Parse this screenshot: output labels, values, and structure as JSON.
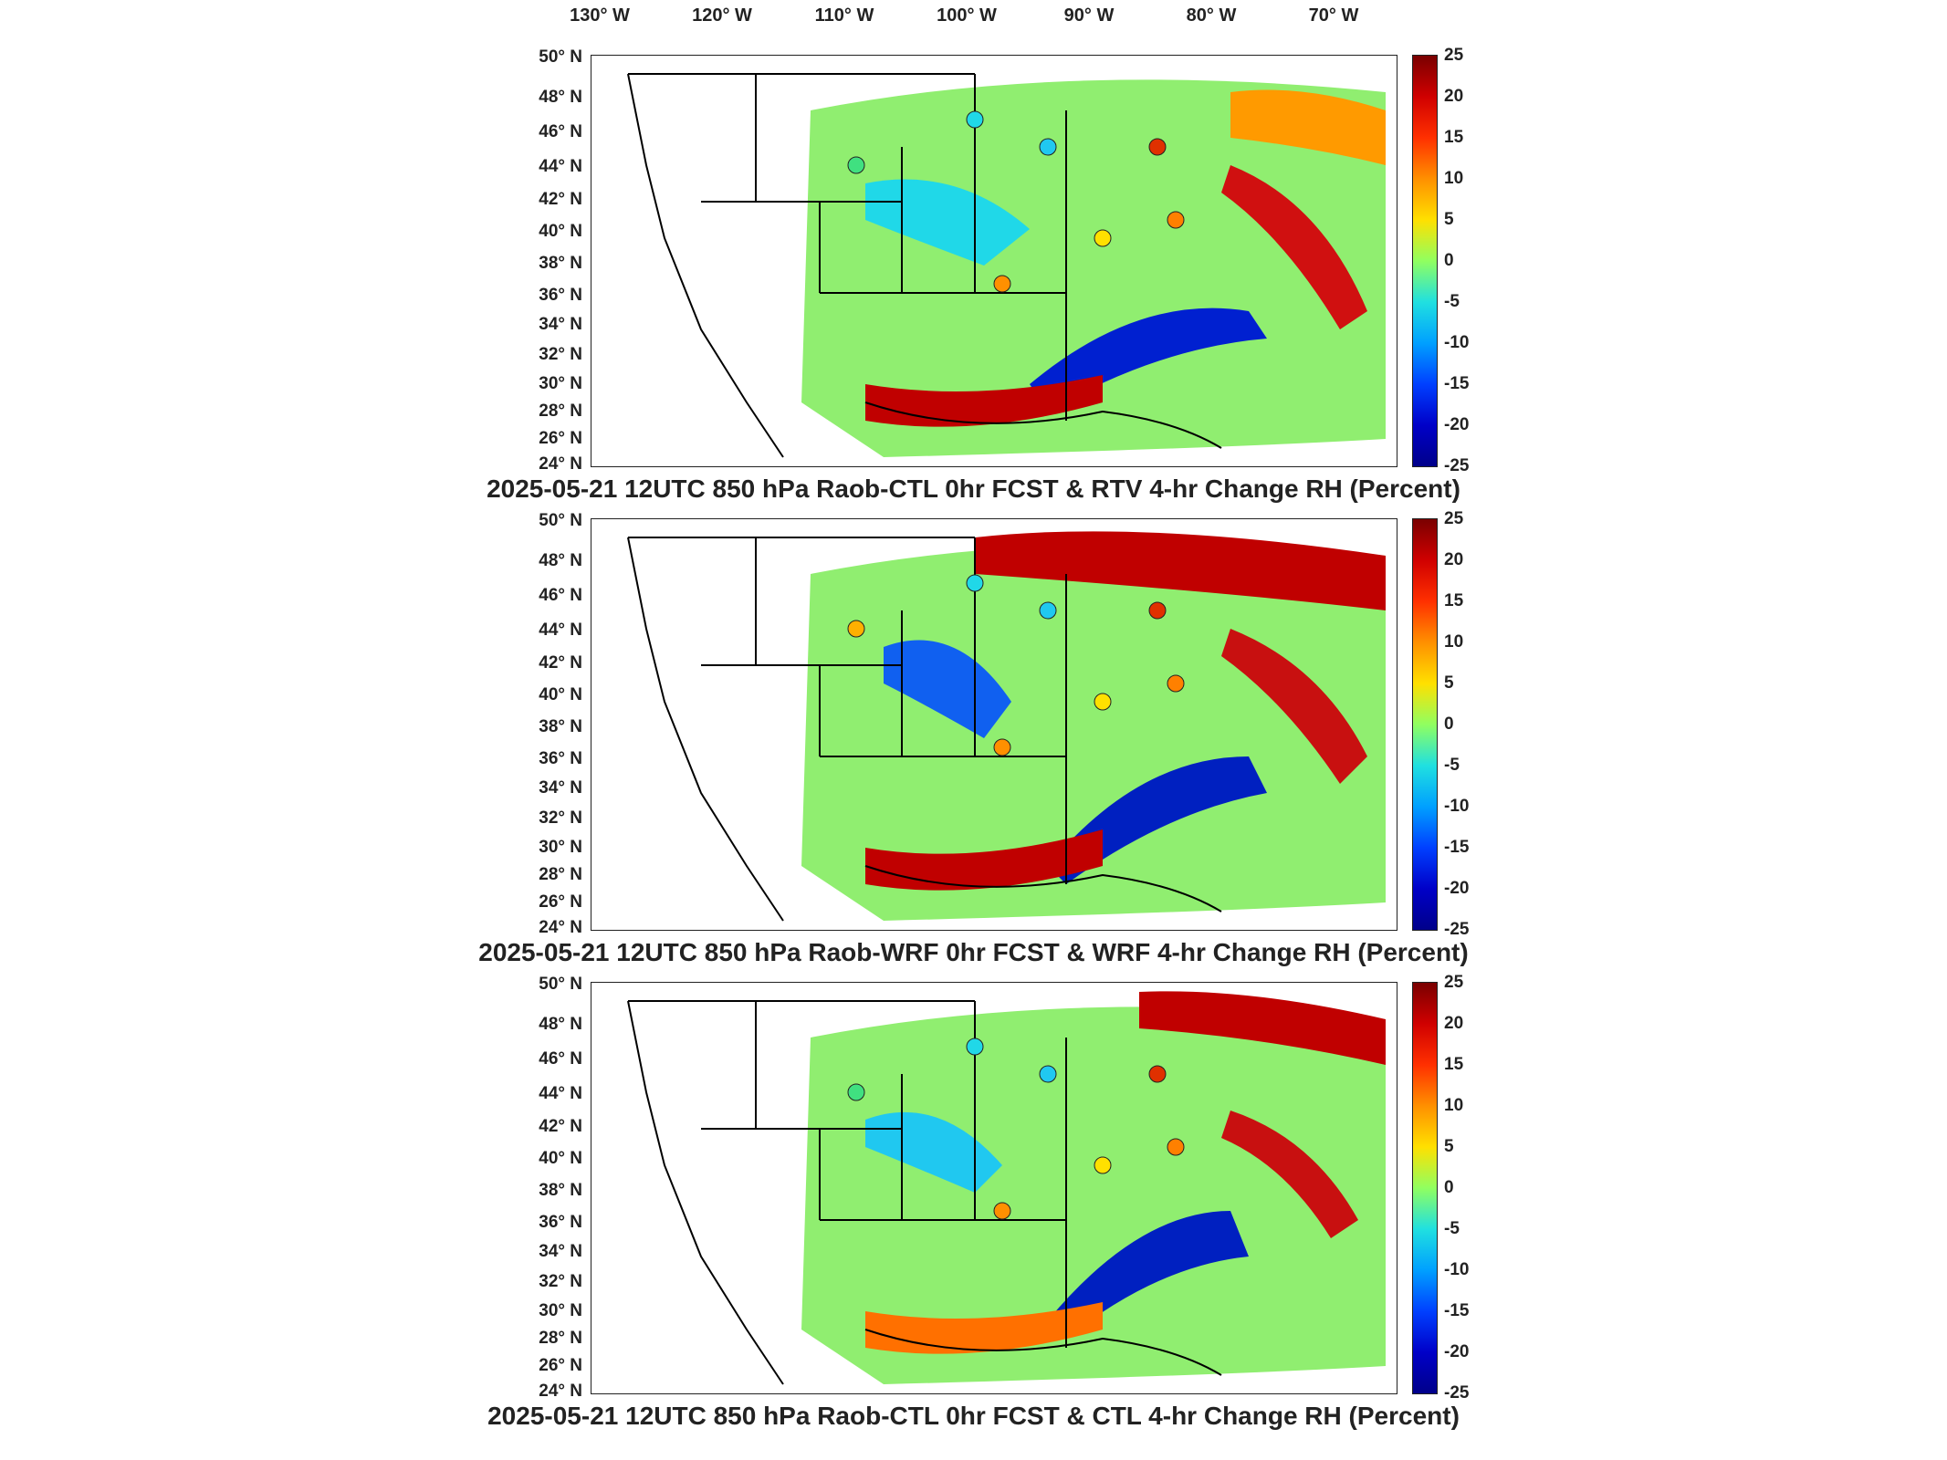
{
  "longitude_labels": [
    "130° W",
    "120° W",
    "110° W",
    "100° W",
    "90° W",
    "80° W",
    "70° W"
  ],
  "latitude_labels": [
    "50° N",
    "48° N",
    "46° N",
    "44° N",
    "42° N",
    "40° N",
    "38° N",
    "36° N",
    "34° N",
    "32° N",
    "30° N",
    "28° N",
    "26° N",
    "24° N"
  ],
  "colorbar_labels": [
    "25",
    "20",
    "15",
    "10",
    "5",
    "0",
    "-5",
    "-10",
    "-15",
    "-20",
    "-25"
  ],
  "colors": {
    "high": "#b00000",
    "mid": "#ffe000",
    "zero": "#90ff60",
    "low": "#0000c8"
  },
  "panels": [
    {
      "title": "2025-05-21 12UTC 850 hPa Raob-CTL 0hr FCST & RTV 4-hr Change RH (Percent)"
    },
    {
      "title": "2025-05-21 12UTC 850 hPa Raob-WRF 0hr FCST & WRF 4-hr Change RH (Percent)"
    },
    {
      "title": "2025-05-21 12UTC 850 hPa Raob-CTL 0hr FCST & CTL 4-hr Change RH (Percent)"
    }
  ]
}
